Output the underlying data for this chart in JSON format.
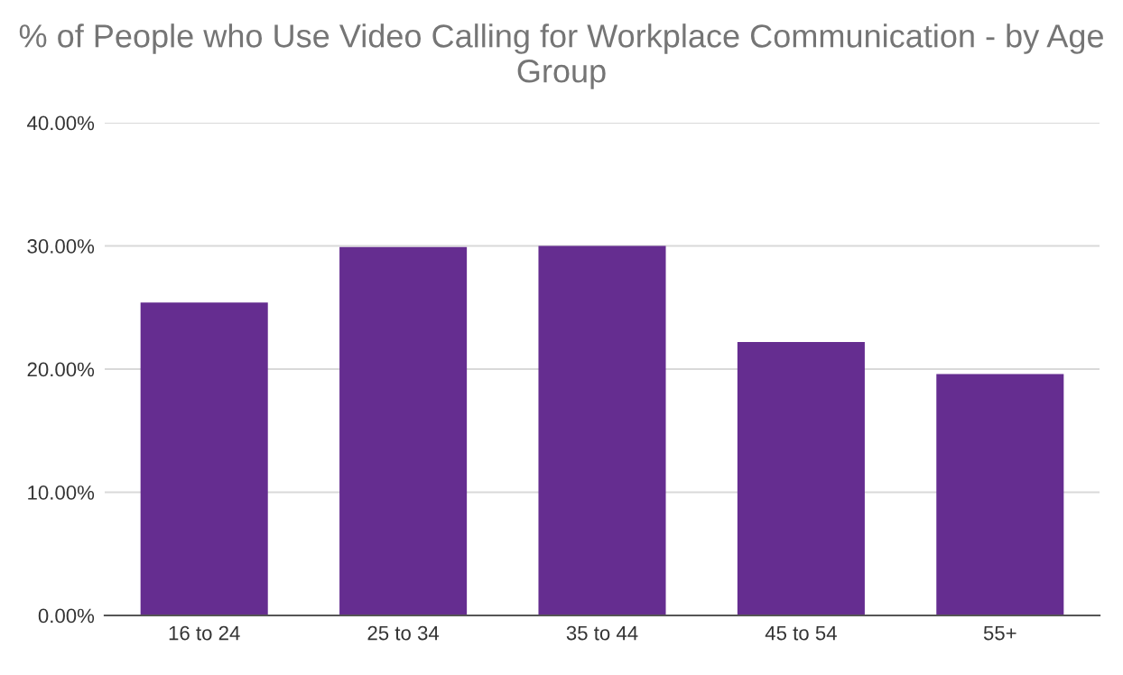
{
  "chart_data": {
    "type": "bar",
    "title": "% of People who Use Video Calling for Workplace Communication - by Age Group",
    "categories": [
      "16 to 24",
      "25 to 34",
      "35 to 44",
      "45 to 54",
      "55+"
    ],
    "values": [
      25.4,
      29.9,
      30.0,
      22.2,
      19.6
    ],
    "color": "#652d90",
    "ylim": [
      0,
      40
    ],
    "yticks": [
      {
        "value": 0,
        "label": "0.00%"
      },
      {
        "value": 10,
        "label": "10.00%"
      },
      {
        "value": 20,
        "label": "20.00%"
      },
      {
        "value": 30,
        "label": "30.00%"
      },
      {
        "value": 40,
        "label": "40.00%"
      }
    ],
    "grid": "y"
  }
}
